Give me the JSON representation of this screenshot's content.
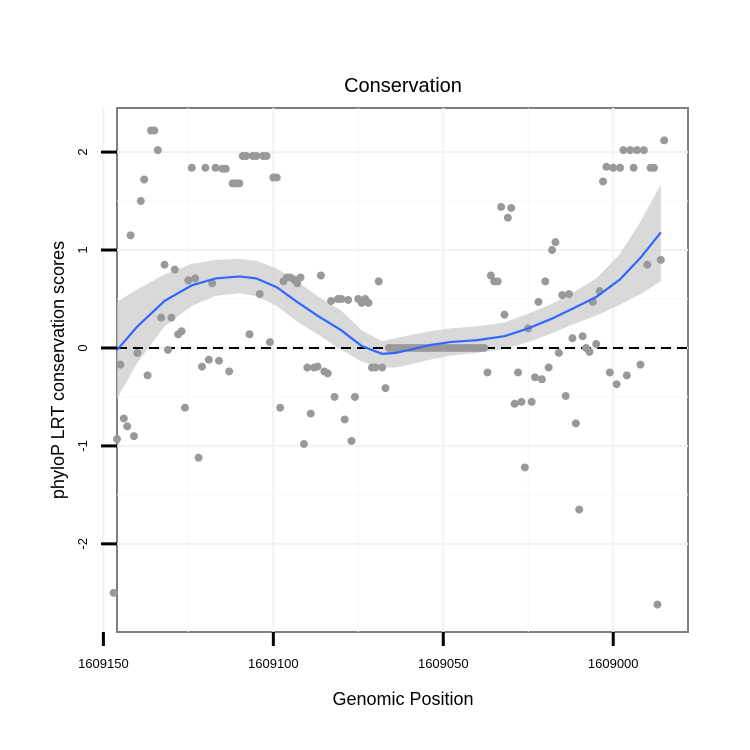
{
  "chart_data": {
    "type": "scatter",
    "title": "Conservation",
    "xlabel": "Genomic Position",
    "ylabel": "phyloP LRT conservation scores",
    "xlim": [
      1609146,
      1608978
    ],
    "ylim": [
      -2.9,
      2.45
    ],
    "x_reversed": true,
    "xticks": [
      1609150,
      1609100,
      1609050,
      1609000
    ],
    "xtick_labels": [
      "1609150",
      "1609100",
      "1609050",
      "1609000"
    ],
    "yticks": [
      -2,
      -1,
      0,
      1,
      2
    ],
    "ytick_labels": [
      "-2",
      "-1",
      "0",
      "1",
      "2"
    ],
    "grid": true,
    "reference_line": {
      "y": 0,
      "style": "dashed"
    },
    "colors": {
      "points": "#999999",
      "smooth_line": "#3366ff",
      "confidence_band": "#cccccc"
    },
    "points": [
      [
        1609147,
        -2.5
      ],
      [
        1609146,
        -0.93
      ],
      [
        1609145,
        -0.17
      ],
      [
        1609144,
        -0.72
      ],
      [
        1609143,
        -0.8
      ],
      [
        1609142,
        1.15
      ],
      [
        1609141,
        -0.9
      ],
      [
        1609140,
        -0.05
      ],
      [
        1609139,
        1.5
      ],
      [
        1609138,
        1.72
      ],
      [
        1609137,
        -0.28
      ],
      [
        1609136,
        2.22
      ],
      [
        1609135,
        2.22
      ],
      [
        1609134,
        2.02
      ],
      [
        1609133,
        0.31
      ],
      [
        1609132,
        0.85
      ],
      [
        1609131,
        -0.02
      ],
      [
        1609130,
        0.31
      ],
      [
        1609129,
        0.8
      ],
      [
        1609128,
        0.14
      ],
      [
        1609127,
        0.17
      ],
      [
        1609126,
        -0.61
      ],
      [
        1609125,
        0.69
      ],
      [
        1609124,
        1.84
      ],
      [
        1609123,
        0.71
      ],
      [
        1609122,
        -1.12
      ],
      [
        1609121,
        -0.19
      ],
      [
        1609120,
        1.84
      ],
      [
        1609119,
        -0.12
      ],
      [
        1609118,
        0.66
      ],
      [
        1609117,
        1.84
      ],
      [
        1609116,
        -0.13
      ],
      [
        1609115,
        1.83
      ],
      [
        1609114,
        1.83
      ],
      [
        1609113,
        -0.24
      ],
      [
        1609112,
        1.68
      ],
      [
        1609111,
        1.68
      ],
      [
        1609110,
        1.68
      ],
      [
        1609109,
        1.96
      ],
      [
        1609108,
        1.96
      ],
      [
        1609107,
        0.14
      ],
      [
        1609106,
        1.96
      ],
      [
        1609105,
        1.96
      ],
      [
        1609104,
        0.55
      ],
      [
        1609103,
        1.96
      ],
      [
        1609102,
        1.96
      ],
      [
        1609101,
        0.06
      ],
      [
        1609100,
        1.74
      ],
      [
        1609099,
        1.74
      ],
      [
        1609098,
        -0.61
      ],
      [
        1609097,
        0.68
      ],
      [
        1609096,
        0.72
      ],
      [
        1609095,
        0.72
      ],
      [
        1609094,
        0.7
      ],
      [
        1609093,
        0.66
      ],
      [
        1609092,
        0.72
      ],
      [
        1609091,
        -0.98
      ],
      [
        1609090,
        -0.2
      ],
      [
        1609089,
        -0.67
      ],
      [
        1609088,
        -0.2
      ],
      [
        1609087,
        -0.19
      ],
      [
        1609086,
        0.74
      ],
      [
        1609085,
        -0.24
      ],
      [
        1609084,
        -0.26
      ],
      [
        1609083,
        0.48
      ],
      [
        1609082,
        -0.5
      ],
      [
        1609081,
        0.5
      ],
      [
        1609080,
        0.5
      ],
      [
        1609079,
        -0.73
      ],
      [
        1609078,
        0.49
      ],
      [
        1609077,
        -0.95
      ],
      [
        1609076,
        -0.5
      ],
      [
        1609075,
        0.5
      ],
      [
        1609074,
        0.46
      ],
      [
        1609073,
        0.5
      ],
      [
        1609072,
        0.46
      ],
      [
        1609071,
        -0.2
      ],
      [
        1609070,
        -0.2
      ],
      [
        1609069,
        0.68
      ],
      [
        1609068,
        -0.2
      ],
      [
        1609067,
        -0.41
      ],
      [
        1609066,
        0.0
      ],
      [
        1609065,
        0.0
      ],
      [
        1609064,
        0.0
      ],
      [
        1609063,
        0.0
      ],
      [
        1609062,
        0.0
      ],
      [
        1609061,
        0.0
      ],
      [
        1609060,
        0.0
      ],
      [
        1609059,
        0.0
      ],
      [
        1609058,
        0.0
      ],
      [
        1609057,
        0.0
      ],
      [
        1609056,
        0.0
      ],
      [
        1609055,
        0.0
      ],
      [
        1609054,
        0.0
      ],
      [
        1609053,
        0.0
      ],
      [
        1609052,
        0.0
      ],
      [
        1609051,
        0.0
      ],
      [
        1609050,
        0.0
      ],
      [
        1609049,
        0.0
      ],
      [
        1609048,
        0.0
      ],
      [
        1609047,
        0.0
      ],
      [
        1609046,
        0.0
      ],
      [
        1609045,
        0.0
      ],
      [
        1609044,
        0.0
      ],
      [
        1609043,
        0.0
      ],
      [
        1609042,
        0.0
      ],
      [
        1609041,
        0.0
      ],
      [
        1609040,
        0.0
      ],
      [
        1609039,
        0.0
      ],
      [
        1609038,
        0.0
      ],
      [
        1609037,
        -0.25
      ],
      [
        1609036,
        0.74
      ],
      [
        1609035,
        0.68
      ],
      [
        1609034,
        0.68
      ],
      [
        1609033,
        1.44
      ],
      [
        1609032,
        0.34
      ],
      [
        1609031,
        1.33
      ],
      [
        1609030,
        1.43
      ],
      [
        1609029,
        -0.57
      ],
      [
        1609028,
        -0.25
      ],
      [
        1609027,
        -0.55
      ],
      [
        1609026,
        -1.22
      ],
      [
        1609025,
        0.2
      ],
      [
        1609024,
        -0.55
      ],
      [
        1609023,
        -0.3
      ],
      [
        1609022,
        0.47
      ],
      [
        1609021,
        -0.32
      ],
      [
        1609020,
        0.68
      ],
      [
        1609019,
        -0.2
      ],
      [
        1609018,
        1.0
      ],
      [
        1609017,
        1.08
      ],
      [
        1609016,
        -0.05
      ],
      [
        1609015,
        0.54
      ],
      [
        1609014,
        -0.49
      ],
      [
        1609013,
        0.55
      ],
      [
        1609012,
        0.1
      ],
      [
        1609011,
        -0.77
      ],
      [
        1609010,
        -1.65
      ],
      [
        1609009,
        0.12
      ],
      [
        1609008,
        0.0
      ],
      [
        1609007,
        -0.04
      ],
      [
        1609006,
        0.47
      ],
      [
        1609005,
        0.04
      ],
      [
        1609004,
        0.58
      ],
      [
        1609003,
        1.7
      ],
      [
        1609002,
        1.85
      ],
      [
        1609001,
        -0.25
      ],
      [
        1609000,
        1.84
      ],
      [
        1608999,
        -0.37
      ],
      [
        1608998,
        1.84
      ],
      [
        1608997,
        2.02
      ],
      [
        1608996,
        -0.28
      ],
      [
        1608995,
        2.02
      ],
      [
        1608994,
        1.84
      ],
      [
        1608993,
        2.02
      ],
      [
        1608992,
        -0.17
      ],
      [
        1608991,
        2.02
      ],
      [
        1608990,
        0.85
      ],
      [
        1608989,
        1.84
      ],
      [
        1608988,
        1.84
      ],
      [
        1608987,
        -2.62
      ],
      [
        1608986,
        0.9
      ],
      [
        1608985,
        2.12
      ]
    ],
    "smooth": {
      "x": [
        1609146,
        1609140,
        1609132,
        1609124,
        1609117,
        1609110,
        1609105,
        1609099,
        1609093,
        1609087,
        1609080,
        1609074,
        1609068,
        1609064,
        1609060,
        1609054,
        1609048,
        1609040,
        1609032,
        1609025,
        1609018,
        1609012,
        1609005,
        1608998,
        1608992,
        1608986
      ],
      "y": [
        -0.02,
        0.22,
        0.48,
        0.64,
        0.71,
        0.73,
        0.71,
        0.62,
        0.47,
        0.33,
        0.18,
        0.02,
        -0.06,
        -0.05,
        -0.02,
        0.03,
        0.06,
        0.08,
        0.12,
        0.2,
        0.3,
        0.4,
        0.52,
        0.7,
        0.92,
        1.18
      ],
      "lower": [
        -0.52,
        -0.15,
        0.22,
        0.43,
        0.53,
        0.56,
        0.53,
        0.43,
        0.27,
        0.14,
        -0.02,
        -0.14,
        -0.2,
        -0.2,
        -0.17,
        -0.12,
        -0.08,
        -0.05,
        -0.01,
        0.06,
        0.15,
        0.24,
        0.33,
        0.44,
        0.55,
        0.68
      ],
      "upper": [
        0.47,
        0.6,
        0.75,
        0.86,
        0.9,
        0.91,
        0.89,
        0.81,
        0.68,
        0.53,
        0.38,
        0.18,
        0.07,
        0.1,
        0.13,
        0.17,
        0.2,
        0.22,
        0.26,
        0.35,
        0.45,
        0.56,
        0.71,
        0.96,
        1.29,
        1.67
      ]
    }
  }
}
